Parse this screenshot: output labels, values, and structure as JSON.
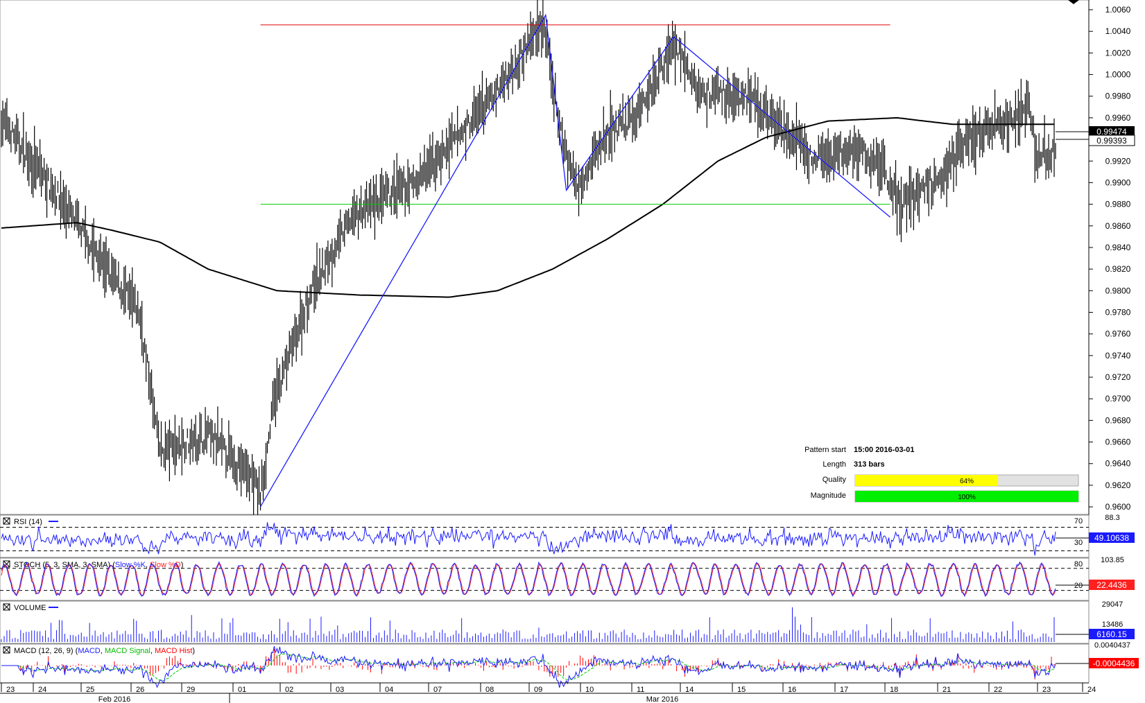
{
  "chart_data": {
    "type": "ohlc-bar",
    "series_name": "",
    "price_axis": {
      "ticks": [
        "1.0060",
        "1.0040",
        "1.0020",
        "1.0000",
        "0.9980",
        "0.9960",
        "0.9940",
        "0.9920",
        "0.9900",
        "0.9880",
        "0.9860",
        "0.9840",
        "0.9820",
        "0.9800",
        "0.9780",
        "0.9760",
        "0.9740",
        "0.9720",
        "0.9700",
        "0.9680",
        "0.9660",
        "0.9640",
        "0.9620",
        "0.9600"
      ],
      "range": [
        0.9593,
        1.0069
      ],
      "current_price": "0.99474",
      "reference_price": "0.99393"
    },
    "time_axis": {
      "day_labels": [
        "23",
        "24",
        "25",
        "26",
        "29",
        "01",
        "02",
        "03",
        "04",
        "07",
        "08",
        "09",
        "10",
        "11",
        "14",
        "15",
        "16",
        "17",
        "18",
        "21",
        "22",
        "23",
        "24"
      ],
      "month_labels": [
        "Feb 2016",
        "Mar 2016"
      ]
    },
    "price_path_waypoints": [
      {
        "t": 0,
        "p": 0.9958
      },
      {
        "t": 45,
        "p": 0.988
      },
      {
        "t": 75,
        "p": 0.9822
      },
      {
        "t": 100,
        "p": 0.978
      },
      {
        "t": 115,
        "p": 0.9652
      },
      {
        "t": 150,
        "p": 0.9666
      },
      {
        "t": 180,
        "p": 0.963
      },
      {
        "t": 188,
        "p": 0.961
      },
      {
        "t": 198,
        "p": 0.97
      },
      {
        "t": 225,
        "p": 0.98
      },
      {
        "t": 255,
        "p": 0.987
      },
      {
        "t": 300,
        "p": 0.99
      },
      {
        "t": 330,
        "p": 0.994
      },
      {
        "t": 360,
        "p": 0.9985
      },
      {
        "t": 393,
        "p": 1.005
      },
      {
        "t": 405,
        "p": 0.995
      },
      {
        "t": 417,
        "p": 0.9897
      },
      {
        "t": 440,
        "p": 0.9945
      },
      {
        "t": 460,
        "p": 0.996
      },
      {
        "t": 488,
        "p": 1.003
      },
      {
        "t": 505,
        "p": 0.9985
      },
      {
        "t": 540,
        "p": 0.998
      },
      {
        "t": 570,
        "p": 0.9945
      },
      {
        "t": 590,
        "p": 0.992
      },
      {
        "t": 620,
        "p": 0.993
      },
      {
        "t": 640,
        "p": 0.9915
      },
      {
        "t": 652,
        "p": 0.988
      },
      {
        "t": 680,
        "p": 0.9905
      },
      {
        "t": 700,
        "p": 0.994
      },
      {
        "t": 730,
        "p": 0.9955
      },
      {
        "t": 745,
        "p": 0.9972
      },
      {
        "t": 752,
        "p": 0.992
      },
      {
        "t": 765,
        "p": 0.993
      }
    ],
    "moving_average": [
      {
        "t": 0,
        "p": 0.9858
      },
      {
        "t": 55,
        "p": 0.9863
      },
      {
        "t": 80,
        "p": 0.9856
      },
      {
        "t": 115,
        "p": 0.9845
      },
      {
        "t": 150,
        "p": 0.982
      },
      {
        "t": 200,
        "p": 0.98
      },
      {
        "t": 260,
        "p": 0.9796
      },
      {
        "t": 325,
        "p": 0.9794
      },
      {
        "t": 360,
        "p": 0.98
      },
      {
        "t": 400,
        "p": 0.982
      },
      {
        "t": 440,
        "p": 0.9848
      },
      {
        "t": 480,
        "p": 0.988
      },
      {
        "t": 520,
        "p": 0.992
      },
      {
        "t": 555,
        "p": 0.9942
      },
      {
        "t": 600,
        "p": 0.9957
      },
      {
        "t": 650,
        "p": 0.996
      },
      {
        "t": 690,
        "p": 0.9954
      },
      {
        "t": 720,
        "p": 0.9954
      },
      {
        "t": 765,
        "p": 0.9954
      }
    ],
    "pattern": {
      "resistance": 1.0046,
      "support": 0.988,
      "zigzag": [
        {
          "t": 188,
          "p": 0.96
        },
        {
          "t": 395,
          "p": 1.0055
        },
        {
          "t": 410,
          "p": 0.9893
        },
        {
          "t": 488,
          "p": 1.0035
        },
        {
          "t": 645,
          "p": 0.9868
        }
      ]
    },
    "info_panel": {
      "pattern_start_label": "Pattern start",
      "pattern_start_value": "15:00 2016-03-01",
      "length_label": "Length",
      "length_value": "313 bars",
      "quality_label": "Quality",
      "quality_value": "64%",
      "quality_fraction": 0.64,
      "magnitude_label": "Magnitude",
      "magnitude_value": "100%",
      "magnitude_fraction": 1.0
    },
    "indicators": {
      "rsi": {
        "label": "RSI (14)",
        "top_label": "88.3",
        "upper_level": "70",
        "lower_level": "30",
        "value": "49.10638",
        "upper": 70,
        "lower": 30
      },
      "stoch": {
        "label": "STOCH (5, 3, SMA, 3, SMA)",
        "k_label": "Slow %K",
        "d_label": "Slow %D",
        "top_label": "103.85",
        "upper_level": "80",
        "lower_level": "20",
        "value": "22.4436",
        "upper": 80,
        "lower": 20
      },
      "volume": {
        "label": "VOLUME",
        "top_label": "29047",
        "mid_label": "13486",
        "value": "6160.15"
      },
      "macd": {
        "label": "MACD (12, 26, 9)",
        "line_label": "MACD",
        "signal_label": "MACD Signal",
        "hist_label": "MACD Hist",
        "top_label": "0.0040437",
        "value": "-0.0004436"
      }
    },
    "colors": {
      "bars": "#000000",
      "ma": "#000000",
      "zigzag": "#1a1aff",
      "resistance": "#e00000",
      "support": "#00cc00",
      "rsi": "#1a1aff",
      "stoch_k": "#1a1aff",
      "stoch_d": "#ff2020",
      "volume": "#1a1aff",
      "macd": "#1a1aff",
      "signal": "#00cc00",
      "hist": "#ff0000",
      "quality_fill": "#ffff00",
      "magnitude_fill": "#00ee00"
    }
  }
}
